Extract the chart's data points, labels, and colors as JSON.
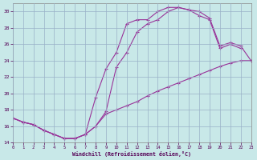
{
  "background_color": "#c8e8e8",
  "grid_color": "#9ab0c8",
  "line_color": "#993399",
  "xlabel": "Windchill (Refroidissement éolien,°C)",
  "xlim_min": 0,
  "xlim_max": 23,
  "ylim_min": 14,
  "ylim_max": 31,
  "yticks": [
    14,
    16,
    18,
    20,
    22,
    24,
    26,
    28,
    30
  ],
  "line1_x": [
    0,
    1,
    2,
    3,
    4,
    5,
    6,
    7,
    8,
    9,
    10,
    11,
    12,
    13,
    14,
    15,
    16,
    17,
    18,
    19,
    20,
    21,
    22,
    23
  ],
  "line1_y": [
    17.0,
    16.5,
    16.2,
    15.5,
    15.0,
    14.5,
    14.5,
    15.0,
    16.0,
    17.5,
    18.0,
    18.5,
    19.0,
    19.7,
    20.3,
    20.8,
    21.3,
    21.8,
    22.3,
    22.8,
    23.3,
    23.7,
    24.0,
    24.0
  ],
  "line2_x": [
    0,
    1,
    2,
    3,
    4,
    5,
    6,
    7,
    8,
    9,
    10,
    11,
    12,
    13,
    14,
    15,
    16,
    17,
    18,
    19,
    20,
    21,
    22
  ],
  "line2_y": [
    17.0,
    16.5,
    16.2,
    15.5,
    15.0,
    14.5,
    14.5,
    15.0,
    19.5,
    23.0,
    25.0,
    28.5,
    29.0,
    29.0,
    30.0,
    30.5,
    30.5,
    30.2,
    29.5,
    29.0,
    25.5,
    26.0,
    25.5
  ],
  "line3_x": [
    0,
    1,
    2,
    3,
    4,
    5,
    6,
    7,
    8,
    9,
    10,
    11,
    12,
    13,
    14,
    15,
    16,
    17,
    18,
    19,
    20,
    21,
    22,
    23
  ],
  "line3_y": [
    17.0,
    16.5,
    16.2,
    15.5,
    15.0,
    14.5,
    14.5,
    15.0,
    16.0,
    17.8,
    23.2,
    25.0,
    27.5,
    28.5,
    29.0,
    30.0,
    30.5,
    30.2,
    30.0,
    29.2,
    25.8,
    26.2,
    25.8,
    24.0
  ]
}
